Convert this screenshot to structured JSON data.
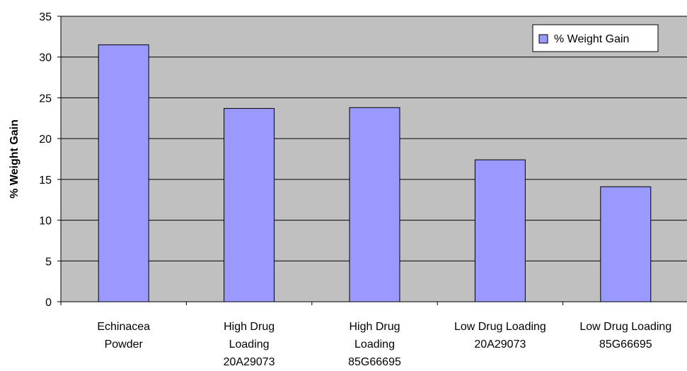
{
  "chart_data": {
    "type": "bar",
    "categories": [
      [
        "Echinacea",
        "Powder"
      ],
      [
        "High Drug",
        "Loading",
        "20A29073"
      ],
      [
        "High Drug",
        "Loading",
        "85G66695"
      ],
      [
        "Low Drug Loading",
        "20A29073"
      ],
      [
        "Low Drug Loading",
        "85G66695"
      ]
    ],
    "series": [
      {
        "name": "% Weight Gain",
        "values": [
          31.5,
          23.7,
          23.8,
          17.4,
          14.1
        ],
        "color": "#9999ff"
      }
    ],
    "ylabel": "% Weight Gain",
    "xlabel": "",
    "title": "",
    "ylim": [
      0,
      35
    ],
    "yticks": [
      0,
      5,
      10,
      15,
      20,
      25,
      30,
      35
    ],
    "grid": true,
    "legend": "top-right",
    "plot_background": "#c0c0c0",
    "bar_border": "#000000"
  }
}
